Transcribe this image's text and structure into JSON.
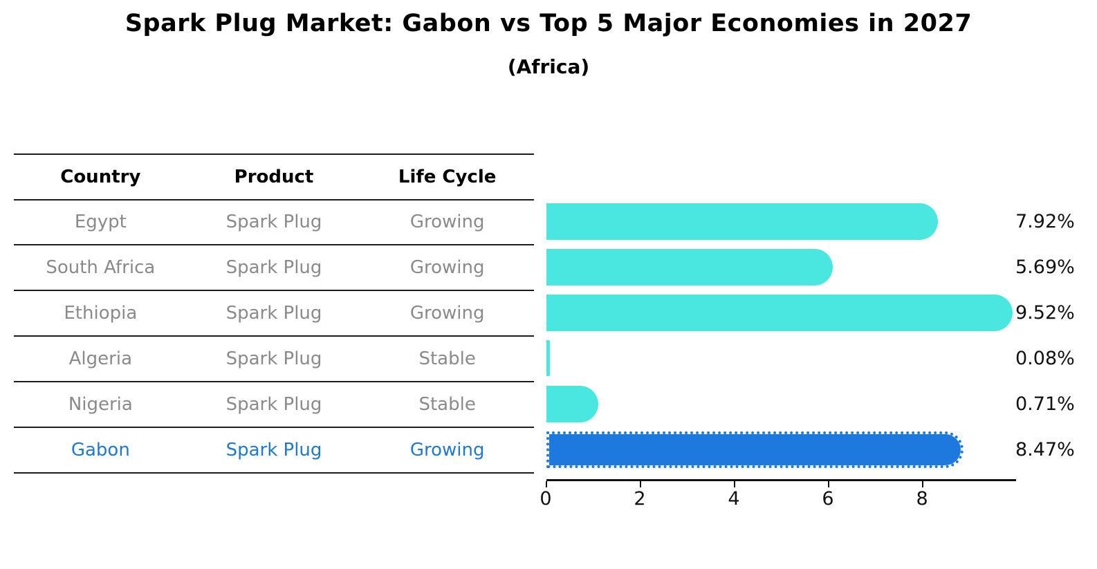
{
  "title": "Spark Plug Market: Gabon vs Top 5 Major Economies in 2027",
  "subtitle": "(Africa)",
  "table": {
    "headers": [
      "Country",
      "Product",
      "Life Cycle"
    ],
    "rows": [
      {
        "country": "Egypt",
        "product": "Spark Plug",
        "life_cycle": "Growing"
      },
      {
        "country": "South Africa",
        "product": "Spark Plug",
        "life_cycle": "Growing"
      },
      {
        "country": "Ethiopia",
        "product": "Spark Plug",
        "life_cycle": "Growing"
      },
      {
        "country": "Algeria",
        "product": "Spark Plug",
        "life_cycle": "Stable"
      },
      {
        "country": "Nigeria",
        "product": "Spark Plug",
        "life_cycle": "Stable"
      },
      {
        "country": "Gabon",
        "product": "Spark Plug",
        "life_cycle": "Growing"
      }
    ],
    "highlight_row": "Gabon"
  },
  "chart_data": {
    "type": "bar",
    "orientation": "horizontal",
    "title": "Spark Plug Market: Gabon vs Top 5 Major Economies in 2027",
    "subtitle": "(Africa)",
    "categories": [
      "Egypt",
      "South Africa",
      "Ethiopia",
      "Algeria",
      "Nigeria",
      "Gabon"
    ],
    "values": [
      7.92,
      5.69,
      9.52,
      0.08,
      0.71,
      8.47
    ],
    "value_labels": [
      "7.92%",
      "5.69%",
      "9.52%",
      "0.08%",
      "0.71%",
      "8.47%"
    ],
    "xlabel": "",
    "ylabel": "",
    "xlim": [
      0,
      9.97
    ],
    "x_ticks": [
      0,
      2,
      4,
      6,
      8
    ],
    "grid": false,
    "legend": false,
    "highlight_index": 5,
    "bar_color": "#4ae7e0",
    "highlight_bar_color": "#1e79df",
    "highlight_text_color": "#1f78d1"
  }
}
